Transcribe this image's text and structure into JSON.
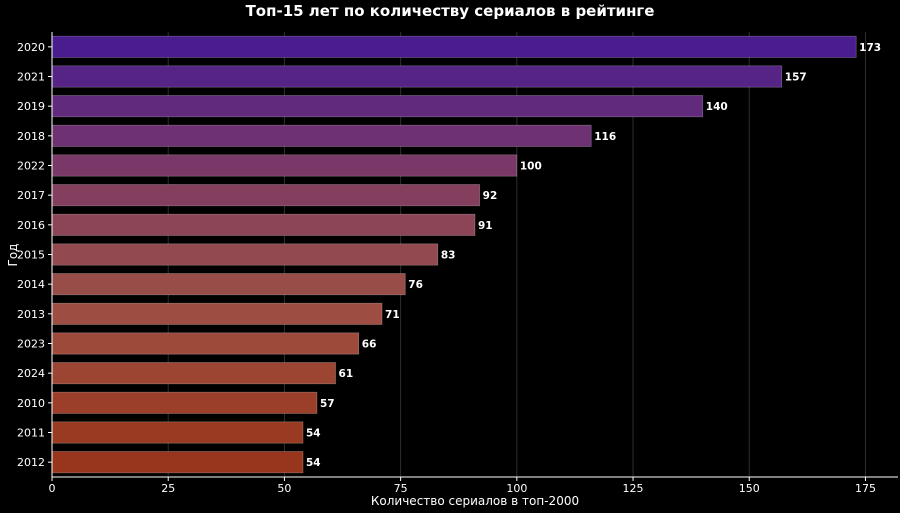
{
  "chart_data": {
    "type": "bar",
    "orientation": "horizontal",
    "title": "Топ-15 лет по количеству сериалов в рейтинге",
    "xlabel": "Количество сериалов в топ-2000",
    "ylabel": "Год",
    "xlim": [
      0,
      182
    ],
    "xticks": [
      0,
      25,
      50,
      75,
      100,
      125,
      150,
      175
    ],
    "grid": "x",
    "categories": [
      "2020",
      "2021",
      "2019",
      "2018",
      "2022",
      "2017",
      "2016",
      "2015",
      "2014",
      "2013",
      "2023",
      "2024",
      "2010",
      "2011",
      "2012"
    ],
    "values": [
      173,
      157,
      140,
      116,
      100,
      92,
      91,
      83,
      76,
      71,
      66,
      61,
      57,
      54,
      54
    ],
    "colors": [
      "#4a1d8f",
      "#562485",
      "#612a7c",
      "#6e3172",
      "#7a3868",
      "#843e5e",
      "#8c4556",
      "#924a50",
      "#994d49",
      "#9d4d42",
      "#9e4a3a",
      "#9c4533",
      "#9b3f2a",
      "#993a22",
      "#98361d"
    ]
  }
}
